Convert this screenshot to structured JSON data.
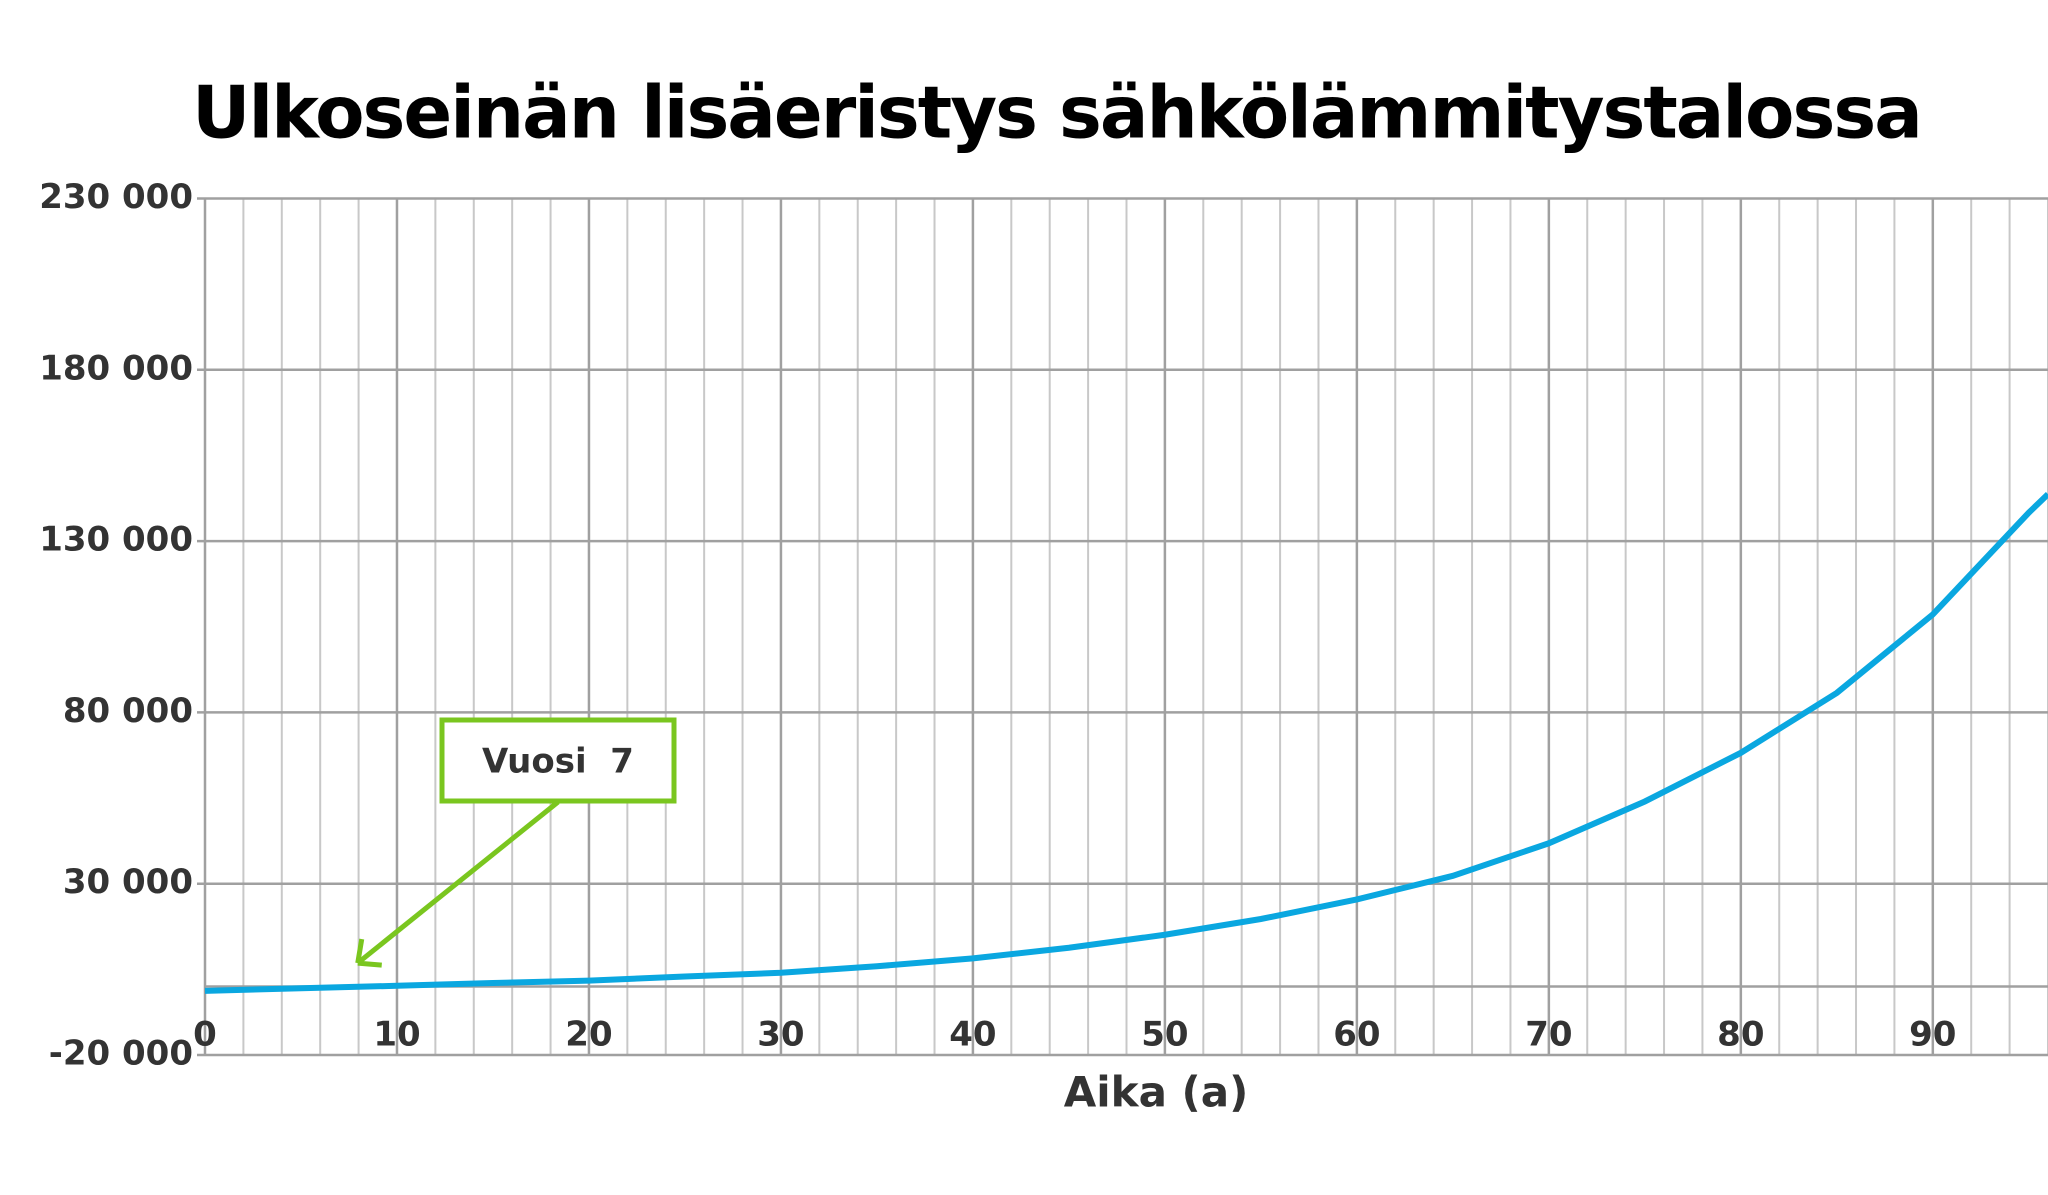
{
  "chart_data": {
    "type": "line",
    "title": "Ulkoseinän lisäeristys sähkölämmitystalossa",
    "x_label": "Aika (a)",
    "x": [
      0,
      5,
      10,
      15,
      20,
      25,
      30,
      35,
      40,
      45,
      50,
      55,
      60,
      65,
      70,
      75,
      80,
      85,
      90,
      95,
      96
    ],
    "values": [
      -1300,
      -500,
      200,
      1000,
      1700,
      2900,
      4000,
      5900,
      8200,
      11300,
      15100,
      19700,
      25400,
      32300,
      41800,
      54000,
      68200,
      85700,
      108600,
      138300,
      143700
    ],
    "color": "#0aa7e0",
    "xlim": [
      0,
      96
    ],
    "xticks": [
      0,
      10,
      20,
      30,
      40,
      50,
      60,
      70,
      80,
      90
    ],
    "xminorticks": [
      2,
      4,
      6,
      8,
      12,
      14,
      16,
      18,
      22,
      24,
      26,
      28,
      32,
      34,
      36,
      38,
      42,
      44,
      46,
      48,
      52,
      54,
      56,
      58,
      62,
      64,
      66,
      68,
      72,
      74,
      76,
      78,
      82,
      84,
      86,
      88,
      92,
      94,
      96
    ],
    "ylim": [
      -20000,
      230000
    ],
    "yticks": [
      {
        "value": -20000,
        "label": "-20 000"
      },
      {
        "value": 30000,
        "label": "30 000"
      },
      {
        "value": 80000,
        "label": "80 000"
      },
      {
        "value": 130000,
        "label": "130 000"
      },
      {
        "value": 180000,
        "label": "180 000"
      },
      {
        "value": 230000,
        "label": "230 000"
      }
    ],
    "grid": true,
    "annotation": {
      "text": "Vuosi  7",
      "x": 7.8,
      "value": 8000,
      "color": "#7ac61f"
    }
  }
}
